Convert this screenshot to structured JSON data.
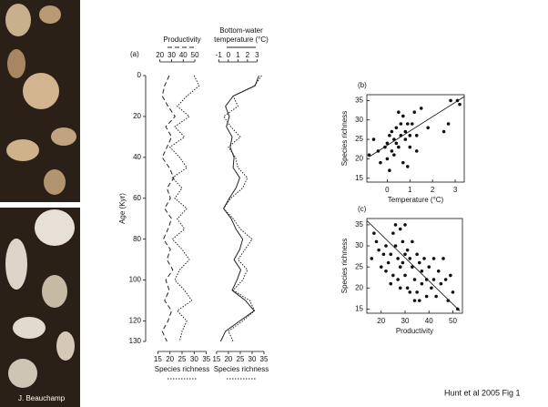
{
  "chart_data": [
    {
      "type": "profile",
      "panel_label": "(a)",
      "ylabel": "Age (Kyr)",
      "ylim": [
        0,
        130
      ],
      "yticks": [
        0,
        20,
        40,
        60,
        80,
        100,
        120,
        130
      ],
      "x": [
        0,
        5,
        10,
        15,
        20,
        25,
        30,
        35,
        40,
        45,
        50,
        55,
        60,
        65,
        70,
        75,
        80,
        85,
        90,
        95,
        100,
        105,
        110,
        115,
        120,
        125,
        130
      ],
      "tracks": [
        {
          "series": [
            {
              "name": [
                "Productivity"
              ],
              "axis": "top",
              "dash": "dashed",
              "color": "#222",
              "lim": [
                14,
                64
              ],
              "ticks": [
                20,
                30,
                40,
                50
              ],
              "values": [
                28,
                24,
                22,
                27,
                33,
                25,
                30,
                26,
                22,
                28,
                32,
                26,
                29,
                24,
                30,
                27,
                23,
                29,
                26,
                31,
                25,
                28,
                24,
                30,
                27,
                22,
                26
              ]
            },
            {
              "name": [
                "Species richness"
              ],
              "axis": "bottom",
              "dash": "dotted",
              "color": "#222",
              "lim": [
                13,
                37
              ],
              "ticks": [
                15,
                20,
                25,
                30,
                35
              ],
              "values": [
                30,
                32,
                27,
                23,
                28,
                22,
                26,
                20,
                24,
                27,
                21,
                25,
                22,
                27,
                23,
                26,
                21,
                25,
                28,
                24,
                22,
                26,
                29,
                23,
                27,
                25,
                24
              ]
            }
          ]
        },
        {
          "series": [
            {
              "name": [
                "Bottom-water",
                "temperature (°C)"
              ],
              "axis": "top",
              "dash": "solid",
              "color": "#222",
              "lim": [
                -1.6,
                4.3
              ],
              "ticks": [
                -1,
                0,
                1,
                2,
                3
              ],
              "values": [
                3.2,
                2.8,
                0.5,
                -0.3,
                0.1,
                -0.2,
                0.4,
                0.2,
                0.6,
                0.5,
                1.2,
                0.8,
                0.1,
                -0.5,
                0.3,
                0.8,
                1.5,
                1.2,
                0.6,
                1.3,
                0.9,
                0.4,
                1.8,
                2.7,
                1.2,
                -0.3,
                -0.8
              ]
            },
            {
              "name": [
                "Species richness"
              ],
              "axis": "bottom",
              "dash": "dotted",
              "color": "#222",
              "lim": [
                13.5,
                37.3
              ],
              "ticks": [
                15,
                20,
                25,
                30,
                35
              ],
              "values": [
                34,
                31,
                22,
                24,
                18,
                21,
                25,
                20,
                23,
                24,
                28,
                26,
                21,
                18,
                22,
                25,
                30,
                27,
                24,
                28,
                26,
                22,
                29,
                31,
                26,
                20,
                22
              ]
            }
          ]
        }
      ]
    },
    {
      "type": "scatter",
      "panel_label": "(b)",
      "xlabel": "Temperature (°C)",
      "ylabel": "Species richness",
      "color": "#111",
      "xlim": [
        -0.9,
        3.4
      ],
      "xticks": [
        0,
        1,
        2,
        3
      ],
      "ylim": [
        14,
        36.5
      ],
      "yticks": [
        15,
        20,
        25,
        30,
        35
      ],
      "x": [
        -0.8,
        -0.6,
        -0.4,
        -0.3,
        -0.1,
        0,
        0,
        0.1,
        0.1,
        0.2,
        0.2,
        0.3,
        0.3,
        0.4,
        0.4,
        0.5,
        0.5,
        0.6,
        0.6,
        0.7,
        0.7,
        0.8,
        0.8,
        0.9,
        1,
        1,
        1.1,
        1.2,
        1.3,
        1.5,
        1.8,
        2.5,
        2.7,
        2.8,
        3.1,
        3.2,
        1.3,
        0.9
      ],
      "values": [
        21,
        25,
        22,
        19,
        23,
        20,
        24,
        26,
        17,
        22,
        27,
        25,
        21,
        28,
        24,
        32,
        23,
        26,
        29,
        31,
        19,
        27,
        25,
        29,
        23,
        26,
        29,
        32,
        22,
        33,
        28,
        27,
        29,
        35,
        35,
        34,
        26,
        18
      ],
      "fit": {
        "x": [
          -0.8,
          3.4
        ],
        "y": [
          20.5,
          36
        ]
      }
    },
    {
      "type": "scatter",
      "panel_label": "(c)",
      "xlabel": "Productivity",
      "ylabel": "Species richness",
      "color": "#111",
      "xlim": [
        14,
        54
      ],
      "xticks": [
        20,
        30,
        40,
        50
      ],
      "ylim": [
        14,
        36.5
      ],
      "yticks": [
        15,
        20,
        25,
        30,
        35
      ],
      "x": [
        16,
        17,
        18,
        19,
        20,
        21,
        22,
        22,
        23,
        24,
        24,
        25,
        25,
        26,
        26,
        27,
        27,
        28,
        28,
        28,
        29,
        29,
        30,
        30,
        30,
        31,
        31,
        32,
        32,
        33,
        33,
        34,
        34,
        35,
        35,
        36,
        36,
        37,
        37,
        38,
        39,
        39,
        40,
        41,
        42,
        42,
        43,
        44,
        45,
        46,
        47,
        48,
        49,
        50,
        52
      ],
      "values": [
        27,
        33,
        31,
        29,
        25,
        28,
        30,
        24,
        26,
        21,
        28,
        33,
        23,
        35,
        30,
        27,
        22,
        34,
        25,
        20,
        31,
        26,
        35,
        28,
        23,
        29,
        20,
        27,
        19,
        31,
        25,
        22,
        17,
        28,
        19,
        26,
        17,
        24,
        21,
        27,
        22,
        18,
        25,
        20,
        27,
        22,
        18,
        24,
        21,
        27,
        22,
        17,
        23,
        19,
        15
      ],
      "fit": {
        "x": [
          14,
          53
        ],
        "y": [
          36,
          14.5
        ]
      }
    }
  ],
  "credit": "J. Beauchamp",
  "citation": "Hunt et al 2005 Fig 1"
}
